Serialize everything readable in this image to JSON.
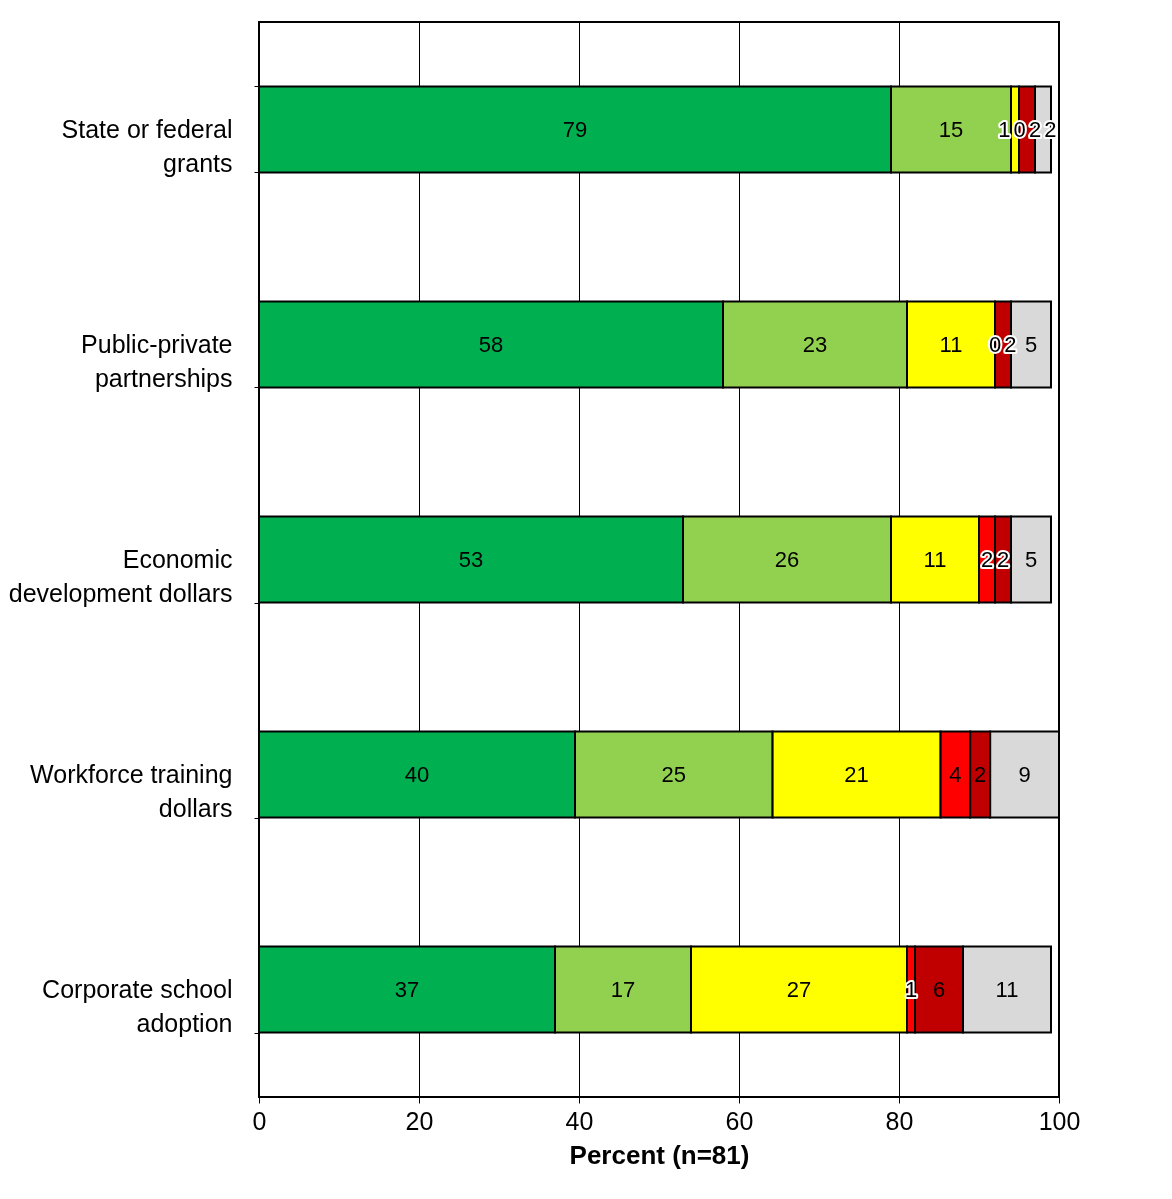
{
  "chart_data": {
    "type": "bar",
    "orientation": "horizontal",
    "stacked": true,
    "grid": "x",
    "legend": false,
    "xlabel": "Percent (n=81)",
    "xlim": [
      0,
      100
    ],
    "xticks": [
      0,
      20,
      40,
      60,
      80,
      100
    ],
    "categories": [
      "State or federal grants",
      "Public-private partnerships",
      "Economic development dollars",
      "Workforce training dollars",
      "Corporate school adoption"
    ],
    "series": [
      {
        "color": "#00b050",
        "values": [
          79,
          58,
          53,
          39.5,
          37
        ],
        "value_labels": [
          "79",
          "58",
          "53",
          "40",
          "37"
        ]
      },
      {
        "color": "#92d050",
        "values": [
          15,
          23,
          26,
          24.7,
          17
        ],
        "value_labels": [
          "15",
          "23",
          "26",
          "25",
          "17"
        ]
      },
      {
        "color": "#ffff00",
        "values": [
          1,
          11,
          11,
          21,
          27
        ],
        "value_labels": [
          "1",
          "11",
          "11",
          "21",
          "27"
        ]
      },
      {
        "color": "#ff0000",
        "values": [
          0,
          0,
          2,
          3.7,
          1
        ],
        "value_labels": [
          "0",
          "0",
          "2",
          "4",
          "1"
        ]
      },
      {
        "color": "#c00000",
        "values": [
          2,
          2,
          2,
          2.5,
          6
        ],
        "value_labels": [
          "2",
          "2",
          "2",
          "2",
          "6"
        ]
      },
      {
        "color": "#d9d9d9",
        "values": [
          2,
          5,
          5,
          8.6,
          11
        ],
        "value_labels": [
          "2",
          "5",
          "5",
          "9",
          "11"
        ]
      }
    ]
  }
}
